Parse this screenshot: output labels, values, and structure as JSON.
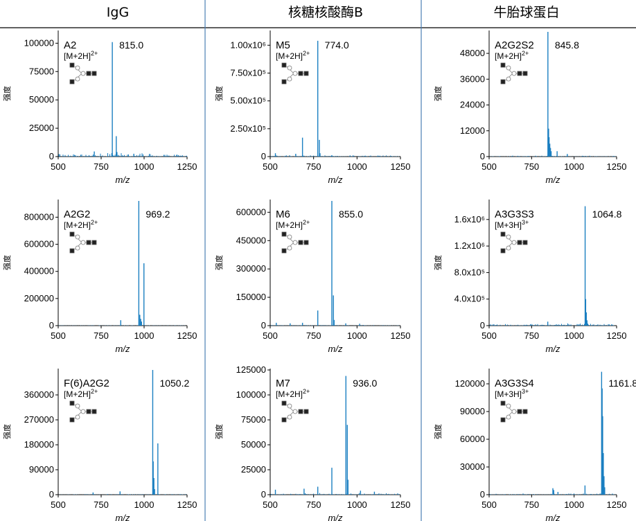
{
  "columns": [
    {
      "title": "IgG"
    },
    {
      "title": "核糖核酸酶B"
    },
    {
      "title": "牛胎球蛋白"
    }
  ],
  "colors": {
    "spectrum": "#1a7fc1",
    "divider": "#4a7fb5",
    "frame": "#000000"
  },
  "chart_data": [
    {
      "type": "line",
      "column": "IgG",
      "glycan": "A2",
      "ion": "[M+2H]2+",
      "peak_label": "815.0",
      "ylabel": "强度",
      "xlabel": "m/z",
      "xlim": [
        500,
        1250
      ],
      "ylim": [
        0,
        110000
      ],
      "yticks": [
        0,
        25000,
        50000,
        75000,
        100000
      ],
      "ytick_labels": [
        "0",
        "25000",
        "50000",
        "75000",
        "100000"
      ],
      "xticks": [
        500,
        750,
        1000,
        1250
      ],
      "noise_max": 0.03,
      "peaks": [
        {
          "x": 815.0,
          "y": 101000
        },
        {
          "x": 812,
          "y": 3000
        },
        {
          "x": 838,
          "y": 18000
        },
        {
          "x": 842,
          "y": 4000
        },
        {
          "x": 710,
          "y": 4500
        },
        {
          "x": 940,
          "y": 2500
        }
      ]
    },
    {
      "type": "line",
      "column": "核糖核酸酶B",
      "glycan": "M5",
      "ion": "[M+2H]2+",
      "peak_label": "774.0",
      "ylabel": "强度",
      "xlabel": "m/z",
      "xlim": [
        500,
        1250
      ],
      "ylim": [
        0,
        1120000
      ],
      "yticks": [
        0,
        250000,
        500000,
        750000,
        1000000
      ],
      "ytick_labels": [
        "0",
        "2.50x10⁵",
        "5.00x10⁵",
        "7.50x10⁵",
        "1.00x10⁶"
      ],
      "xticks": [
        500,
        750,
        1000,
        1250
      ],
      "noise_max": 0.012,
      "peaks": [
        {
          "x": 774.0,
          "y": 1040000
        },
        {
          "x": 686,
          "y": 170000
        },
        {
          "x": 783,
          "y": 150000
        },
        {
          "x": 787,
          "y": 30000
        },
        {
          "x": 530,
          "y": 30000
        },
        {
          "x": 647,
          "y": 25000
        },
        {
          "x": 855,
          "y": 12000
        },
        {
          "x": 960,
          "y": 10000
        }
      ]
    },
    {
      "type": "line",
      "column": "牛胎球蛋白",
      "glycan": "A2G2S2",
      "ion": "[M+2H]2+",
      "peak_label": "845.8",
      "ylabel": "强度",
      "xlabel": "m/z",
      "xlim": [
        500,
        1250
      ],
      "ylim": [
        0,
        58000
      ],
      "yticks": [
        0,
        12000,
        24000,
        36000,
        48000
      ],
      "ytick_labels": [
        "0",
        "12000",
        "24000",
        "36000",
        "48000"
      ],
      "xticks": [
        500,
        750,
        1000,
        1250
      ],
      "noise_max": 0.008,
      "peaks": [
        {
          "x": 845.8,
          "y": 58000
        },
        {
          "x": 850,
          "y": 13000
        },
        {
          "x": 853,
          "y": 9000
        },
        {
          "x": 857,
          "y": 6000
        },
        {
          "x": 861,
          "y": 4000
        },
        {
          "x": 865,
          "y": 2500
        },
        {
          "x": 900,
          "y": 2500
        },
        {
          "x": 960,
          "y": 1200
        }
      ]
    },
    {
      "type": "line",
      "column": "IgG",
      "glycan": "A2G2",
      "ion": "[M+2H]2+",
      "peak_label": "969.2",
      "ylabel": "强度",
      "xlabel": "m/z",
      "xlim": [
        500,
        1250
      ],
      "ylim": [
        0,
        920000
      ],
      "yticks": [
        0,
        200000,
        400000,
        600000,
        800000
      ],
      "ytick_labels": [
        "0",
        "200000",
        "400000",
        "600000",
        "800000"
      ],
      "xticks": [
        500,
        750,
        1000,
        1250
      ],
      "noise_max": 0.004,
      "peaks": [
        {
          "x": 969.2,
          "y": 920000
        },
        {
          "x": 999,
          "y": 460000
        },
        {
          "x": 975,
          "y": 80000
        },
        {
          "x": 980,
          "y": 50000
        },
        {
          "x": 985,
          "y": 30000
        },
        {
          "x": 864,
          "y": 40000
        }
      ]
    },
    {
      "type": "line",
      "column": "核糖核酸酶B",
      "glycan": "M6",
      "ion": "[M+2H]2+",
      "peak_label": "855.0",
      "ylabel": "强度",
      "xlabel": "m/z",
      "xlim": [
        500,
        1250
      ],
      "ylim": [
        0,
        660000
      ],
      "yticks": [
        0,
        150000,
        300000,
        450000,
        600000
      ],
      "ytick_labels": [
        "0",
        "150000",
        "300000",
        "450000",
        "600000"
      ],
      "xticks": [
        500,
        750,
        1000,
        1250
      ],
      "noise_max": 0.006,
      "peaks": [
        {
          "x": 855.0,
          "y": 660000
        },
        {
          "x": 864,
          "y": 160000
        },
        {
          "x": 868,
          "y": 30000
        },
        {
          "x": 774,
          "y": 80000
        },
        {
          "x": 535,
          "y": 15000
        },
        {
          "x": 615,
          "y": 12000
        },
        {
          "x": 686,
          "y": 15000
        },
        {
          "x": 935,
          "y": 12000
        },
        {
          "x": 1015,
          "y": 10000
        }
      ]
    },
    {
      "type": "line",
      "column": "牛胎球蛋白",
      "glycan": "A3G3S3",
      "ion": "[M+3H]3+",
      "peak_label": "1064.8",
      "ylabel": "强度",
      "xlabel": "m/z",
      "xlim": [
        500,
        1250
      ],
      "ylim": [
        0,
        1880000
      ],
      "yticks": [
        0,
        400000,
        800000,
        1200000,
        1600000
      ],
      "ytick_labels": [
        "0",
        "4.0x10⁵",
        "8.0x10⁵",
        "1.2x10⁶",
        "1.6x10⁶"
      ],
      "xticks": [
        500,
        750,
        1000,
        1250
      ],
      "noise_max": 0.02,
      "peaks": [
        {
          "x": 1064.8,
          "y": 1800000
        },
        {
          "x": 1068,
          "y": 400000
        },
        {
          "x": 1072,
          "y": 200000
        },
        {
          "x": 1076,
          "y": 80000
        },
        {
          "x": 1080,
          "y": 30000
        },
        {
          "x": 845,
          "y": 60000
        }
      ]
    },
    {
      "type": "line",
      "column": "IgG",
      "glycan": "F(6)A2G2",
      "ion": "[M+2H]2+",
      "peak_label": "1050.2",
      "ylabel": "强度",
      "xlabel": "m/z",
      "xlim": [
        500,
        1250
      ],
      "ylim": [
        0,
        450000
      ],
      "yticks": [
        0,
        90000,
        180000,
        270000,
        360000
      ],
      "ytick_labels": [
        "0",
        "90000",
        "180000",
        "270000",
        "360000"
      ],
      "xticks": [
        500,
        750,
        1000,
        1250
      ],
      "noise_max": 0.006,
      "peaks": [
        {
          "x": 1050.2,
          "y": 450000
        },
        {
          "x": 1080,
          "y": 185000
        },
        {
          "x": 1053,
          "y": 120000
        },
        {
          "x": 1057,
          "y": 60000
        },
        {
          "x": 1061,
          "y": 20000
        },
        {
          "x": 860,
          "y": 12000
        },
        {
          "x": 703,
          "y": 8000
        }
      ]
    },
    {
      "type": "line",
      "column": "核糖核酸酶B",
      "glycan": "M7",
      "ion": "[M+2H]2+",
      "peak_label": "936.0",
      "ylabel": "强度",
      "xlabel": "m/z",
      "xlim": [
        500,
        1250
      ],
      "ylim": [
        0,
        125000
      ],
      "yticks": [
        0,
        25000,
        50000,
        75000,
        100000,
        125000
      ],
      "ytick_labels": [
        "0",
        "25000",
        "50000",
        "75000",
        "100000",
        "125000"
      ],
      "xticks": [
        500,
        750,
        1000,
        1250
      ],
      "noise_max": 0.015,
      "peaks": [
        {
          "x": 936.0,
          "y": 119000
        },
        {
          "x": 944,
          "y": 70000
        },
        {
          "x": 948,
          "y": 15000
        },
        {
          "x": 855,
          "y": 27000
        },
        {
          "x": 774,
          "y": 8000
        },
        {
          "x": 530,
          "y": 5000
        },
        {
          "x": 695,
          "y": 6000
        },
        {
          "x": 1020,
          "y": 4000
        },
        {
          "x": 1100,
          "y": 3000
        }
      ]
    },
    {
      "type": "line",
      "column": "牛胎球蛋白",
      "glycan": "A3G3S4",
      "ion": "[M+3H]3+",
      "peak_label": "1161.8",
      "ylabel": "强度",
      "xlabel": "m/z",
      "xlim": [
        500,
        1250
      ],
      "ylim": [
        0,
        135000
      ],
      "yticks": [
        0,
        30000,
        60000,
        90000,
        120000
      ],
      "ytick_labels": [
        "0",
        "30000",
        "60000",
        "90000",
        "120000"
      ],
      "xticks": [
        500,
        750,
        1000,
        1250
      ],
      "noise_max": 0.012,
      "peaks": [
        {
          "x": 1161.8,
          "y": 133000
        },
        {
          "x": 1165,
          "y": 115000
        },
        {
          "x": 1168,
          "y": 85000
        },
        {
          "x": 1172,
          "y": 45000
        },
        {
          "x": 1176,
          "y": 20000
        },
        {
          "x": 1180,
          "y": 8000
        },
        {
          "x": 1064,
          "y": 10000
        },
        {
          "x": 875,
          "y": 7000
        },
        {
          "x": 880,
          "y": 5000
        },
        {
          "x": 905,
          "y": 3000
        }
      ]
    }
  ]
}
